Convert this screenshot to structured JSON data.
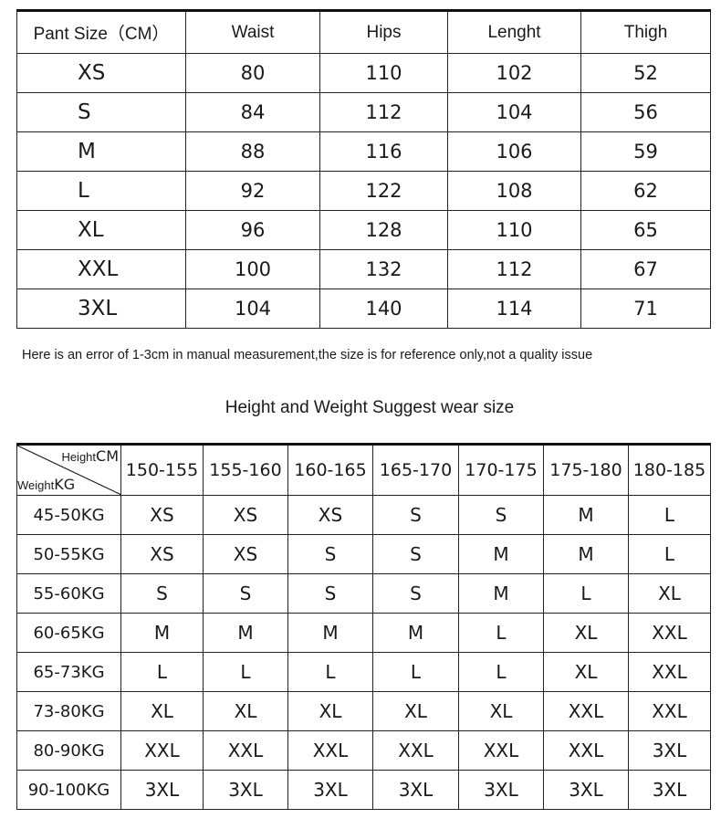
{
  "measure_table": {
    "headers": [
      "Pant Size（CM）",
      "Waist",
      "Hips",
      "Lenght",
      "Thigh"
    ],
    "rows": [
      [
        "XS",
        "80",
        "110",
        "102",
        "52"
      ],
      [
        "S",
        "84",
        "112",
        "104",
        "56"
      ],
      [
        "M",
        "88",
        "116",
        "106",
        "59"
      ],
      [
        "L",
        "92",
        "122",
        "108",
        "62"
      ],
      [
        "XL",
        "96",
        "128",
        "110",
        "65"
      ],
      [
        "XXL",
        "100",
        "132",
        "112",
        "67"
      ],
      [
        "3XL",
        "104",
        "140",
        "114",
        "71"
      ]
    ]
  },
  "note": "Here is an error of 1-3cm in manual measurement,the size is for reference only,not a quality issue",
  "suggest_title": "Height and Weight Suggest wear size",
  "suggest_table": {
    "corner": {
      "height_label": "Height",
      "height_unit": "CM",
      "weight_label": "Weight",
      "weight_unit": "KG"
    },
    "heights": [
      "150-155",
      "155-160",
      "160-165",
      "165-170",
      "170-175",
      "175-180",
      "180-185"
    ],
    "rows": [
      {
        "weight": "45-50KG",
        "sizes": [
          "XS",
          "XS",
          "XS",
          "S",
          "S",
          "M",
          "L"
        ]
      },
      {
        "weight": "50-55KG",
        "sizes": [
          "XS",
          "XS",
          "S",
          "S",
          "M",
          "M",
          "L"
        ]
      },
      {
        "weight": "55-60KG",
        "sizes": [
          "S",
          "S",
          "S",
          "S",
          "M",
          "L",
          "XL"
        ]
      },
      {
        "weight": "60-65KG",
        "sizes": [
          "M",
          "M",
          "M",
          "M",
          "L",
          "XL",
          "XXL"
        ]
      },
      {
        "weight": "65-73KG",
        "sizes": [
          "L",
          "L",
          "L",
          "L",
          "L",
          "XL",
          "XXL"
        ]
      },
      {
        "weight": "73-80KG",
        "sizes": [
          "XL",
          "XL",
          "XL",
          "XL",
          "XL",
          "XXL",
          "XXL"
        ]
      },
      {
        "weight": "80-90KG",
        "sizes": [
          "XXL",
          "XXL",
          "XXL",
          "XXL",
          "XXL",
          "XXL",
          "3XL"
        ]
      },
      {
        "weight": "90-100KG",
        "sizes": [
          "3XL",
          "3XL",
          "3XL",
          "3XL",
          "3XL",
          "3XL",
          "3XL"
        ]
      }
    ]
  }
}
